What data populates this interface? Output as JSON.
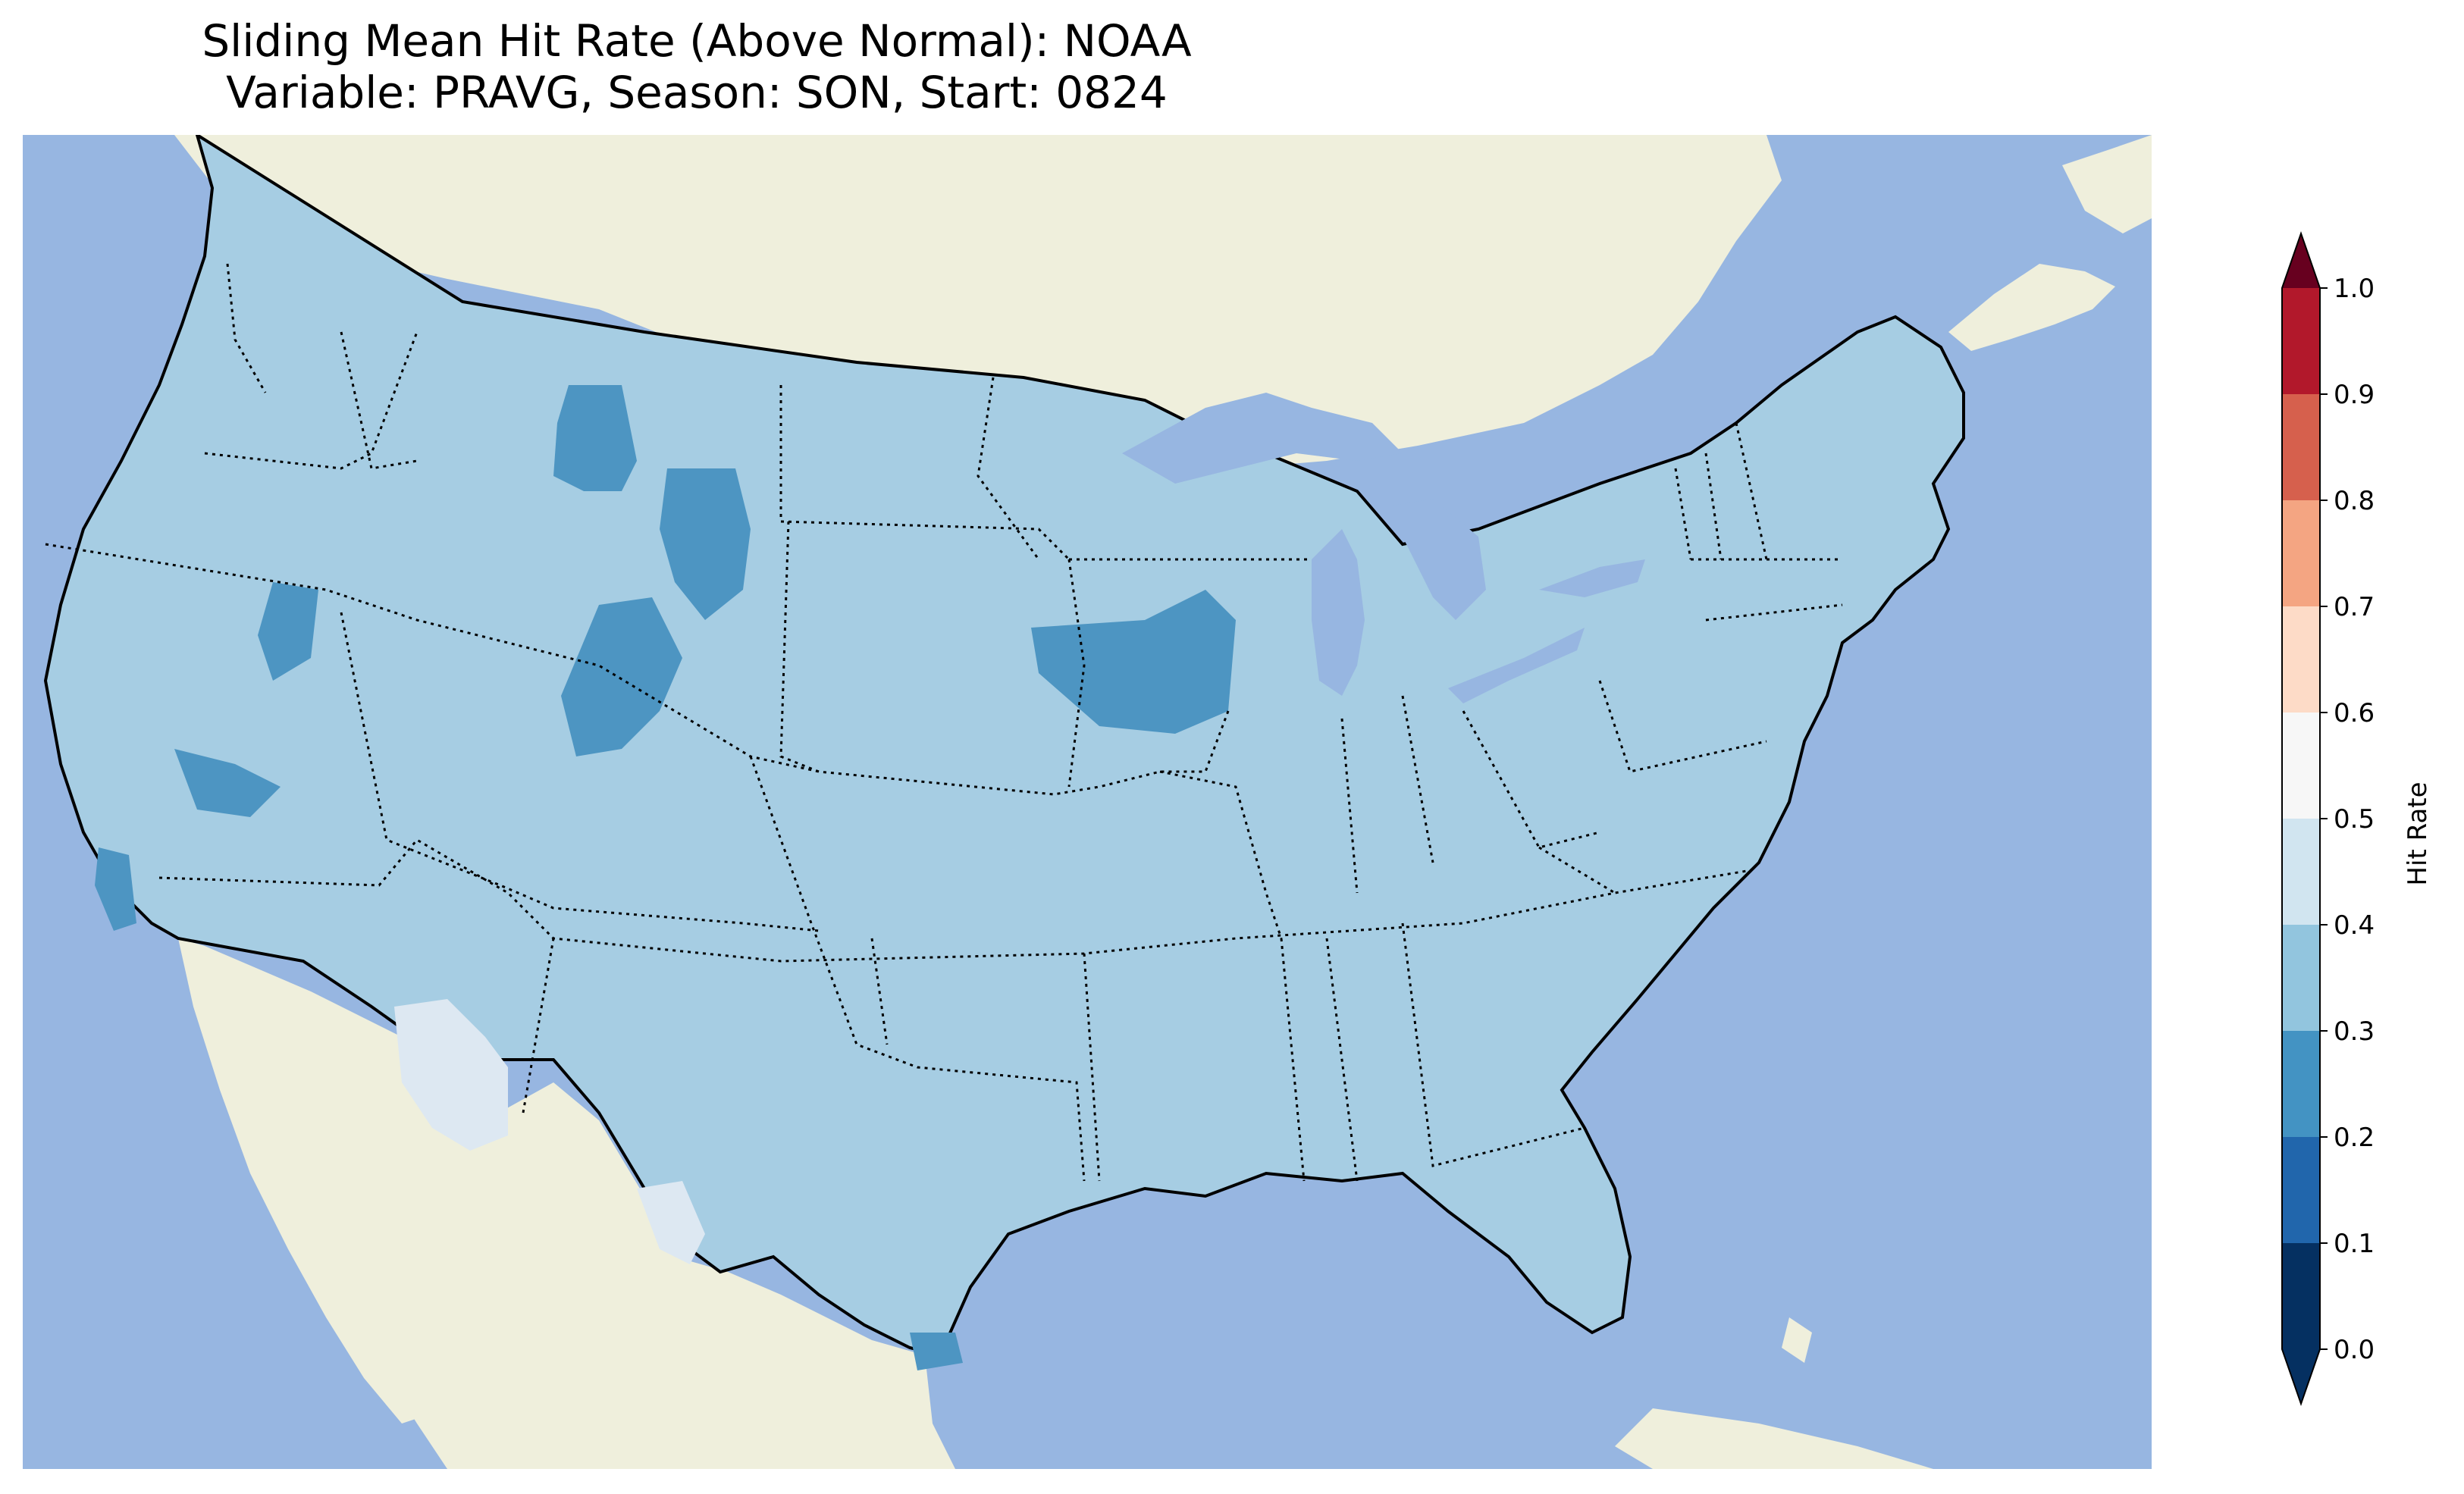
{
  "title": {
    "line1": "Sliding Mean Hit Rate (Above Normal): NOAA",
    "line2": "Variable: PRAVG, Season: SON, Start: 0824"
  },
  "colors": {
    "ocean": "#97b6e1",
    "land": "#efefdc",
    "border": "#000000"
  },
  "map_data": {
    "region": "Contiguous United States",
    "dominant_value_range": [
      0.3,
      0.4
    ],
    "low_value_areas": [
      "Idaho/Montana",
      "Wyoming",
      "Iowa/Minnesota",
      "Nevada",
      "California coast",
      "South Texas"
    ],
    "higher_value_areas": [
      "Arizona",
      "West Texas"
    ]
  },
  "colorbar": {
    "label": "Hit Rate",
    "ticks": [
      "0.0",
      "0.1",
      "0.2",
      "0.3",
      "0.4",
      "0.5",
      "0.6",
      "0.7",
      "0.8",
      "0.9",
      "1.0"
    ],
    "colors": [
      "#053061",
      "#2166ac",
      "#4393c3",
      "#92c5de",
      "#d1e5f0",
      "#f7f7f7",
      "#fddbc7",
      "#f4a582",
      "#d6604d",
      "#b2182b"
    ],
    "extend_low": "#053061",
    "extend_high": "#67001f"
  }
}
